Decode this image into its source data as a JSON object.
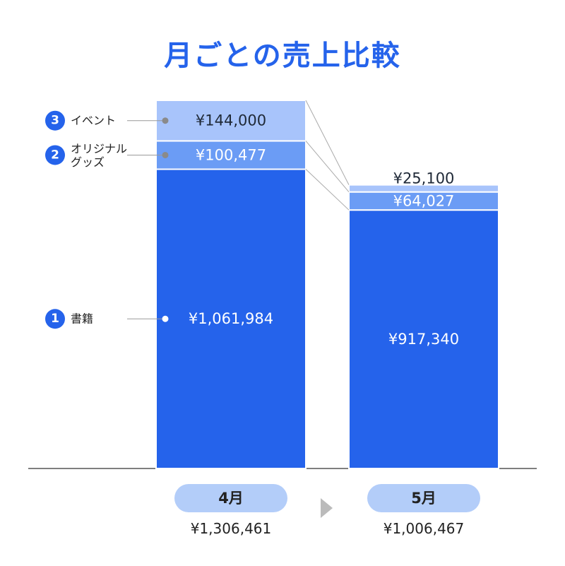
{
  "title": "月ごとの売上比較",
  "colors": {
    "accent": "#2563eb",
    "book": "#2563eb",
    "goods": "#6b9cf5",
    "event": "#a8c4fb",
    "pill": "#b3cdf9",
    "text": "#222222",
    "arrow": "#bbbbbb",
    "connector": "#aaaaaa"
  },
  "chart_data": {
    "type": "bar",
    "stacked": true,
    "categories": [
      "4月",
      "5月"
    ],
    "series": [
      {
        "name": "書籍",
        "marker": "1",
        "values": [
          1061984,
          917340
        ],
        "value_labels": [
          "¥1,061,984",
          "¥917,340"
        ]
      },
      {
        "name": "オリジナルグッズ",
        "display_lines": [
          "オリジナル",
          "グッズ"
        ],
        "marker": "2",
        "values": [
          100477,
          64027
        ],
        "value_labels": [
          "¥100,477",
          "¥64,027"
        ]
      },
      {
        "name": "イベント",
        "marker": "3",
        "values": [
          144000,
          25100
        ],
        "value_labels": [
          "¥144,000",
          "¥25,100"
        ]
      }
    ],
    "totals": [
      1306461,
      1006467
    ],
    "total_labels": [
      "¥1,306,461",
      "¥1,006,467"
    ],
    "ylim": [
      0,
      1306461
    ],
    "grid": false,
    "legend": "left"
  }
}
